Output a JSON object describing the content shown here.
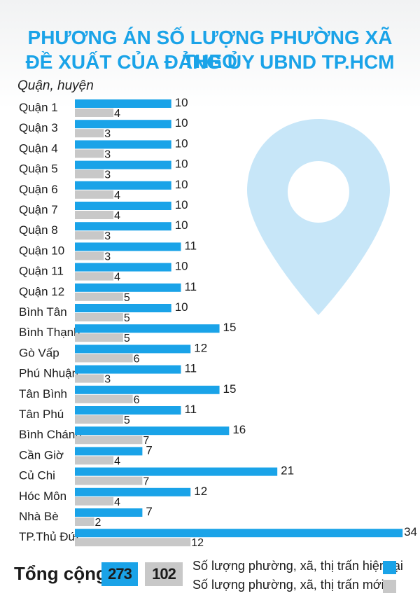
{
  "title_line1": "PHƯƠNG ÁN SỐ LƯỢNG PHƯỜNG XÃ THEO",
  "title_line2": "ĐỀ XUẤT CỦA ĐẢNG ỦY UBND TP.HCM",
  "y_axis_label": "Quận, huyện",
  "colors": {
    "current": "#1aa3e8",
    "new": "#c8c8c8",
    "title": "#1aa3e8"
  },
  "decoration_icon": "map-pin-icon",
  "chart_data": {
    "type": "bar",
    "orientation": "horizontal",
    "categories": [
      "Quận 1",
      "Quận 3",
      "Quận 4",
      "Quận 5",
      "Quận 6",
      "Quận 7",
      "Quận 8",
      "Quận 10",
      "Quận 11",
      "Quận 12",
      "Bình Tân",
      "Bình Thạnh",
      "Gò Vấp",
      "Phú Nhuận",
      "Tân Bình",
      "Tân Phú",
      "Bình Chánh",
      "Cần Giờ",
      "Củ Chi",
      "Hóc Môn",
      "Nhà Bè",
      "TP.Thủ Đức"
    ],
    "series": [
      {
        "name": "Số lượng phường, xã, thị trấn hiện tại",
        "values": [
          10,
          10,
          10,
          10,
          10,
          10,
          10,
          11,
          10,
          11,
          10,
          15,
          12,
          11,
          15,
          11,
          16,
          7,
          21,
          12,
          7,
          34
        ]
      },
      {
        "name": "Số lượng phường, xã, thị trấn mới",
        "values": [
          4,
          3,
          3,
          3,
          4,
          4,
          3,
          3,
          4,
          5,
          5,
          5,
          6,
          3,
          6,
          5,
          7,
          4,
          7,
          4,
          2,
          12
        ]
      }
    ],
    "xlim": [
      0,
      34
    ],
    "grid": false,
    "legend_position": "bottom-right"
  },
  "footer": {
    "total_label": "Tổng cộng:",
    "total_current": "273",
    "total_new": "102",
    "legend_current": "Số lượng phường, xã, thị trấn hiện tại",
    "legend_new": "Số lượng phường, xã, thị trấn mới"
  }
}
